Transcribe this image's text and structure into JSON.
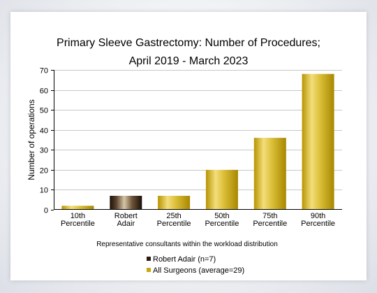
{
  "chart_data": {
    "type": "bar",
    "title": "Primary Sleeve Gastrectomy: Number of Procedures;",
    "subtitle": "April 2019 - March 2023",
    "ylabel": "Number of operations",
    "xlabel": "Representative consultants within the workload distribution",
    "ylim": [
      0,
      70
    ],
    "yticks": [
      0,
      10,
      20,
      30,
      40,
      50,
      60,
      70
    ],
    "grid": true,
    "categories": [
      [
        "10th",
        "Percentile"
      ],
      [
        "Robert",
        "Adair"
      ],
      [
        "25th",
        "Percentile"
      ],
      [
        "50th",
        "Percentile"
      ],
      [
        "75th",
        "Percentile"
      ],
      [
        "90th",
        "Percentile"
      ]
    ],
    "values": [
      2,
      7,
      7,
      20,
      36,
      68
    ],
    "highlight_index": 1,
    "colors": {
      "surgeon_bar": "#2a1a10",
      "all_bar": "#c9a80c"
    },
    "legend": [
      {
        "label": "Robert Adair (n=7)",
        "color": "#2a1a10"
      },
      {
        "label": "All Surgeons (average=29)",
        "color": "#c9a80c"
      }
    ]
  }
}
